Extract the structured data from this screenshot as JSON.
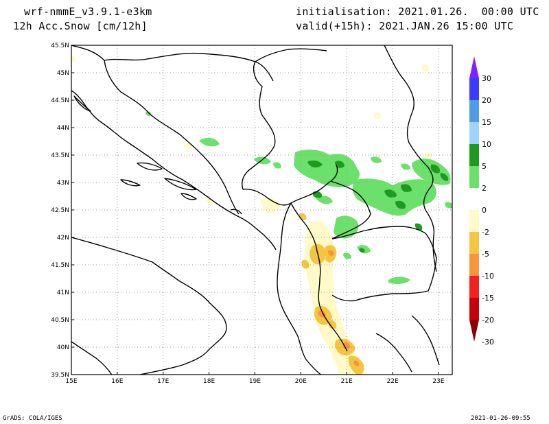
{
  "header": {
    "model": "wrf-nmmE_v3.9.1-e3km",
    "field": "12h Acc.Snow [cm/12h]",
    "init": "initialisation: 2021.01.26.  00:00 UTC",
    "valid": "valid(+15h): 2021.JAN.26 15:00 UTC"
  },
  "map": {
    "lat_labels": [
      "45.5N",
      "45N",
      "44.5N",
      "44N",
      "43.5N",
      "43N",
      "42.5N",
      "42N",
      "41.5N",
      "41N",
      "40.5N",
      "40N",
      "39.5N"
    ],
    "lon_labels": [
      "15E",
      "16E",
      "17E",
      "18E",
      "19E",
      "20E",
      "21E",
      "22E",
      "23E"
    ],
    "lat_range": [
      39.5,
      45.5
    ],
    "lon_range": [
      15,
      23.3
    ]
  },
  "colorbar": {
    "labels": [
      "30",
      "20",
      "15",
      "10",
      "5",
      "2",
      "0",
      "-2",
      "-5",
      "-10",
      "-15",
      "-20",
      "-30"
    ],
    "colors": [
      "#7e22ff",
      "#3c3cff",
      "#4f9be6",
      "#9ed4fa",
      "#1e9b1e",
      "#6be06b",
      "#ffffff",
      "#fffac8",
      "#f5c441",
      "#f7943c",
      "#f5201e",
      "#c8000c",
      "#8c0000"
    ]
  },
  "footer": {
    "left": "GrADS: COLA/IGES",
    "right": "2021-01-26-09:55"
  }
}
